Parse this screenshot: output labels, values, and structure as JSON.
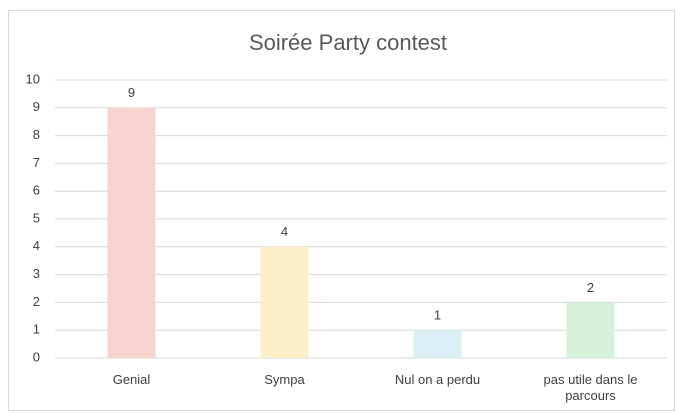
{
  "chart_data": {
    "type": "bar",
    "title": "Soirée Party contest",
    "categories": [
      "Genial",
      "Sympa",
      "Nul on a perdu",
      "pas utile dans le parcours"
    ],
    "values": [
      9,
      4,
      1,
      2
    ],
    "colors": [
      "#f8d4d1",
      "#fdf0c8",
      "#d9eff3",
      "#d4f1da"
    ],
    "ylim": [
      0,
      10
    ],
    "yticks": [
      0,
      1,
      2,
      3,
      4,
      5,
      6,
      7,
      8,
      9,
      10
    ],
    "grid": true
  }
}
